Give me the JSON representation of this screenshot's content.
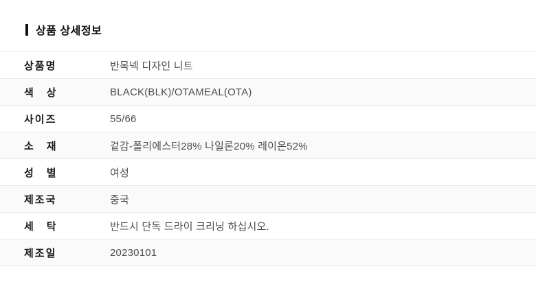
{
  "page": {
    "background": "#ffffff"
  },
  "header": {
    "title": "상품 상세정보",
    "accent_bar_color": "#111111"
  },
  "table": {
    "colors": {
      "divider": "#e8e8e8",
      "alt_row_background": "#fafafa",
      "label_text": "#1a1a1a",
      "value_text": "#4d4d4d"
    },
    "rows": [
      {
        "label": "상품명",
        "value": "반목넥 디자인 니트"
      },
      {
        "label": "색 상",
        "value": "BLACK(BLK)/OTAMEAL(OTA)"
      },
      {
        "label": "사이즈",
        "value": "55/66"
      },
      {
        "label": "소 재",
        "value": "겉감-폴리에스터28% 나일론20% 레이온52%"
      },
      {
        "label": "성 별",
        "value": "여성"
      },
      {
        "label": "제조국",
        "value": "중국"
      },
      {
        "label": "세 탁",
        "value": "반드시 단독 드라이 크리닝 하십시오."
      },
      {
        "label": "제조일",
        "value": "20230101"
      }
    ]
  }
}
